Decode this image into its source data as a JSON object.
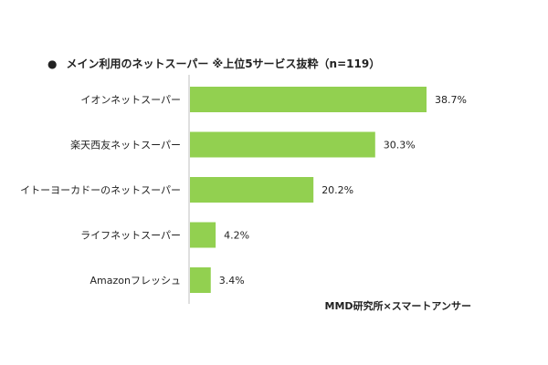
{
  "title": "メイン利用のネットスーパー ※上位5サービス抜粋（n=119）",
  "title_bullet": "●",
  "source": "MMD研究所×スマートアンサー",
  "colors": {
    "bar": "#92d050",
    "axis": "#bfbfbf",
    "text": "#222222"
  },
  "chart_data": {
    "type": "bar",
    "orientation": "horizontal",
    "title": "メイン利用のネットスーパー ※上位5サービス抜粋（n=119）",
    "categories": [
      "イオンネットスーパー",
      "楽天西友ネットスーパー",
      "イトーヨーカドーのネットスーパー",
      "ライフネットスーパー",
      "Amazonフレッシュ"
    ],
    "values": [
      38.7,
      30.3,
      20.2,
      4.2,
      3.4
    ],
    "data_labels": [
      "38.7%",
      "30.3%",
      "20.2%",
      "4.2%",
      "3.4%"
    ],
    "unit": "%",
    "xlim": [
      0,
      45
    ],
    "grid": false,
    "legend": "none"
  }
}
